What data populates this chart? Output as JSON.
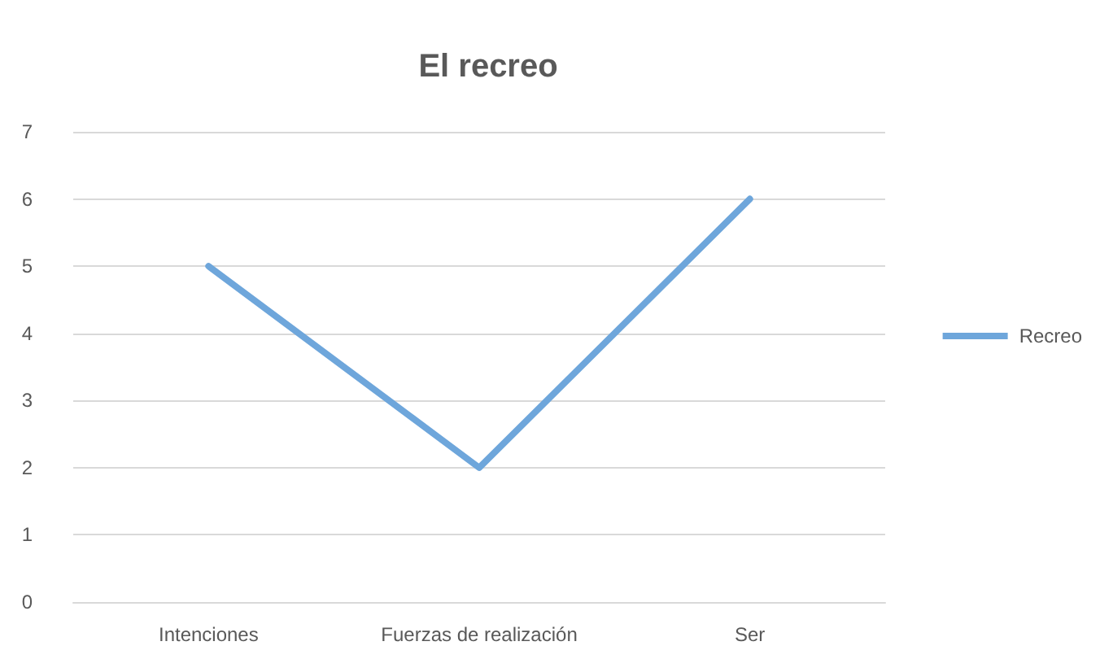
{
  "chart_data": {
    "type": "line",
    "title": "El recreo",
    "categories": [
      "Intenciones",
      "Fuerzas de realización",
      "Ser"
    ],
    "series": [
      {
        "name": "Recreo",
        "color": "#6ea6db",
        "values": [
          5,
          2,
          6
        ]
      }
    ],
    "ylim": [
      0,
      7
    ],
    "yticks": [
      0,
      1,
      2,
      3,
      4,
      5,
      6,
      7
    ],
    "grid": "y",
    "legend": "right",
    "marker": "none",
    "line_style": "solid"
  }
}
